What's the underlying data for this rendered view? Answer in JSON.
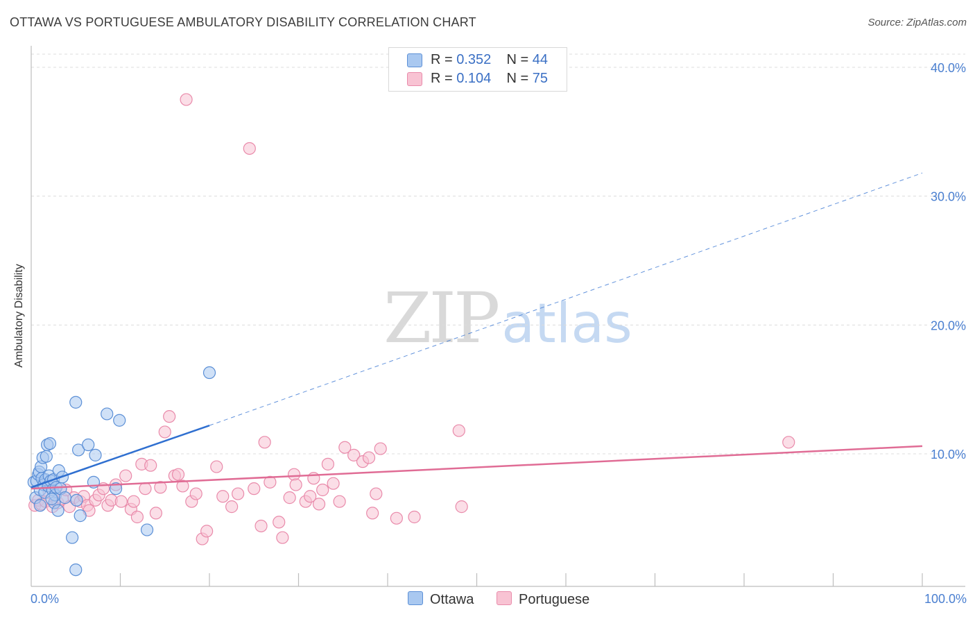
{
  "header": {
    "title": "OTTAWA VS PORTUGUESE AMBULATORY DISABILITY CORRELATION CHART",
    "source": "Source: ZipAtlas.com"
  },
  "watermark": {
    "part1": "ZIP",
    "part2": "atlas"
  },
  "legend": {
    "ottawa": {
      "r_label": "R =",
      "r_value": "0.352",
      "n_label": "N =",
      "n_value": "44"
    },
    "portuguese": {
      "r_label": "R =",
      "r_value": "0.104",
      "n_label": "N =",
      "n_value": "75"
    }
  },
  "colors": {
    "ottawa_fill": "#a9c8f0",
    "ottawa_stroke": "#5b8fd6",
    "ottawa_line": "#2f6fd0",
    "portuguese_fill": "#f8c3d3",
    "portuguese_stroke": "#e98aaa",
    "portuguese_line": "#e06c95",
    "tick_text": "#4a7fd0",
    "grid": "#dcdcdc"
  },
  "chart_data": {
    "type": "scatter",
    "title": "OTTAWA VS PORTUGUESE AMBULATORY DISABILITY CORRELATION CHART",
    "xlabel": "",
    "ylabel": "Ambulatory Disability",
    "xlim": [
      0,
      100
    ],
    "ylim": [
      0,
      42
    ],
    "x_tick_labels": [
      "0.0%",
      "100.0%"
    ],
    "y_ticks": [
      10,
      20,
      30,
      40
    ],
    "y_tick_labels": [
      "10.0%",
      "20.0%",
      "30.0%",
      "40.0%"
    ],
    "series": [
      {
        "name": "Ottawa",
        "r": 0.352,
        "n": 44,
        "trend": {
          "x0": 0,
          "y0": 7.4,
          "x1": 20,
          "y1": 12.2,
          "dashed_to_x": 100,
          "dashed_to_y": 31.8
        },
        "points": [
          [
            0.3,
            7.8
          ],
          [
            0.5,
            6.6
          ],
          [
            0.6,
            7.9
          ],
          [
            0.8,
            8.4
          ],
          [
            0.9,
            8.6
          ],
          [
            1.0,
            7.2
          ],
          [
            1.1,
            9.0
          ],
          [
            1.2,
            8.1
          ],
          [
            1.3,
            9.7
          ],
          [
            1.4,
            7.6
          ],
          [
            1.5,
            7.0
          ],
          [
            1.6,
            8.0
          ],
          [
            1.7,
            9.8
          ],
          [
            1.8,
            10.7
          ],
          [
            1.9,
            7.5
          ],
          [
            2.0,
            8.3
          ],
          [
            2.1,
            10.8
          ],
          [
            2.2,
            7.9
          ],
          [
            2.4,
            7.2
          ],
          [
            2.5,
            8.0
          ],
          [
            2.6,
            6.2
          ],
          [
            2.7,
            6.8
          ],
          [
            2.8,
            7.4
          ],
          [
            3.0,
            5.6
          ],
          [
            3.1,
            8.7
          ],
          [
            3.3,
            7.3
          ],
          [
            3.5,
            8.2
          ],
          [
            4.6,
            3.5
          ],
          [
            5.0,
            1.0
          ],
          [
            5.0,
            14.0
          ],
          [
            5.1,
            6.4
          ],
          [
            5.3,
            10.3
          ],
          [
            5.5,
            5.2
          ],
          [
            6.4,
            10.7
          ],
          [
            7.0,
            7.8
          ],
          [
            7.2,
            9.9
          ],
          [
            8.5,
            13.1
          ],
          [
            9.5,
            7.3
          ],
          [
            9.9,
            12.6
          ],
          [
            13.0,
            4.1
          ],
          [
            20.0,
            16.3
          ],
          [
            1.0,
            6.0
          ],
          [
            2.3,
            6.5
          ],
          [
            3.8,
            6.6
          ]
        ]
      },
      {
        "name": "Portuguese",
        "r": 0.104,
        "n": 75,
        "trend": {
          "x0": 0,
          "y0": 7.3,
          "x1": 100,
          "y1": 10.6
        },
        "points": [
          [
            0.4,
            6.0
          ],
          [
            0.8,
            6.4
          ],
          [
            1.1,
            6.1
          ],
          [
            1.6,
            6.3
          ],
          [
            2.0,
            7.0
          ],
          [
            2.4,
            5.9
          ],
          [
            3.0,
            6.2
          ],
          [
            3.5,
            6.5
          ],
          [
            3.9,
            7.2
          ],
          [
            4.3,
            5.9
          ],
          [
            4.8,
            6.6
          ],
          [
            5.5,
            6.3
          ],
          [
            5.9,
            6.7
          ],
          [
            6.3,
            6.0
          ],
          [
            6.5,
            5.6
          ],
          [
            7.2,
            6.4
          ],
          [
            7.6,
            6.8
          ],
          [
            8.1,
            7.3
          ],
          [
            8.6,
            6.0
          ],
          [
            9.0,
            6.4
          ],
          [
            9.5,
            7.6
          ],
          [
            10.1,
            6.3
          ],
          [
            10.6,
            8.3
          ],
          [
            11.2,
            5.7
          ],
          [
            11.5,
            6.3
          ],
          [
            11.9,
            5.1
          ],
          [
            12.4,
            9.2
          ],
          [
            12.8,
            7.3
          ],
          [
            13.4,
            9.1
          ],
          [
            14.0,
            5.4
          ],
          [
            14.5,
            7.4
          ],
          [
            15.0,
            11.7
          ],
          [
            15.5,
            12.9
          ],
          [
            16.1,
            8.3
          ],
          [
            16.5,
            8.4
          ],
          [
            17.0,
            7.5
          ],
          [
            17.4,
            37.5
          ],
          [
            18.0,
            6.3
          ],
          [
            18.5,
            6.9
          ],
          [
            19.2,
            3.4
          ],
          [
            19.7,
            4.0
          ],
          [
            20.8,
            9.0
          ],
          [
            21.5,
            6.7
          ],
          [
            22.5,
            5.9
          ],
          [
            23.2,
            6.9
          ],
          [
            24.5,
            33.7
          ],
          [
            25.0,
            7.3
          ],
          [
            25.8,
            4.4
          ],
          [
            26.2,
            10.9
          ],
          [
            26.8,
            7.8
          ],
          [
            27.8,
            4.7
          ],
          [
            28.2,
            3.5
          ],
          [
            29.0,
            6.6
          ],
          [
            29.5,
            8.4
          ],
          [
            29.7,
            7.6
          ],
          [
            30.8,
            6.3
          ],
          [
            31.3,
            6.7
          ],
          [
            31.7,
            8.1
          ],
          [
            32.3,
            6.1
          ],
          [
            32.7,
            7.2
          ],
          [
            33.3,
            9.2
          ],
          [
            33.9,
            7.7
          ],
          [
            34.6,
            6.3
          ],
          [
            35.2,
            10.5
          ],
          [
            36.2,
            9.9
          ],
          [
            37.2,
            9.4
          ],
          [
            37.9,
            9.7
          ],
          [
            38.3,
            5.4
          ],
          [
            38.7,
            6.9
          ],
          [
            39.2,
            10.4
          ],
          [
            41.0,
            5.0
          ],
          [
            43.0,
            5.1
          ],
          [
            48.0,
            11.8
          ],
          [
            48.3,
            5.9
          ],
          [
            85.0,
            10.9
          ]
        ]
      }
    ]
  },
  "bottom_legend": {
    "ottawa": "Ottawa",
    "portuguese": "Portuguese"
  }
}
